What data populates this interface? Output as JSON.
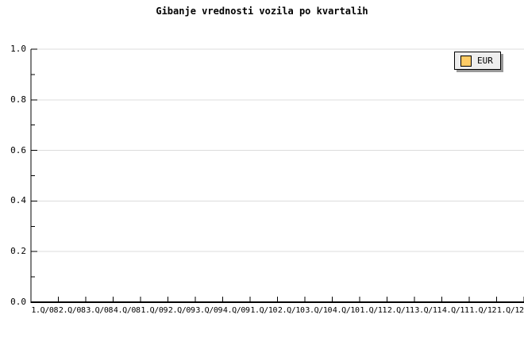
{
  "title": "Gibanje vrednosti vozila po kvartalih",
  "legend": {
    "position": "top-right",
    "items": [
      {
        "label": "EUR",
        "swatch_color": "#FFCC66"
      }
    ]
  },
  "chart_data": {
    "type": "line",
    "title": "Gibanje vrednosti vozila po kvartalih",
    "xlabel": "",
    "ylabel": "",
    "categories": [
      "1.Q/08",
      "2.Q/08",
      "3.Q/08",
      "4.Q/08",
      "1.Q/09",
      "2.Q/09",
      "3.Q/09",
      "4.Q/09",
      "1.Q/10",
      "2.Q/10",
      "3.Q/10",
      "4.Q/10",
      "1.Q/11",
      "2.Q/11",
      "3.Q/11",
      "4.Q/11",
      "1.Q/12",
      "1.Q/12"
    ],
    "series": [
      {
        "name": "EUR",
        "color": "#FFCC66",
        "values": []
      }
    ],
    "ylim": [
      0.0,
      1.0
    ],
    "y_tick_labels": [
      "1.0",
      "0.8",
      "0.6",
      "0.4",
      "0.2",
      "0.0"
    ],
    "y_major_step": 0.2,
    "y_minor_step": 0.1,
    "grid": "horizontal-major-only",
    "legend_position": "top-right",
    "colors": {
      "axis": "#000000",
      "gridline": "#dcdcdc",
      "background": "#ffffff",
      "legend_background": "#eeeeee",
      "legend_shadow": "#999999"
    }
  }
}
